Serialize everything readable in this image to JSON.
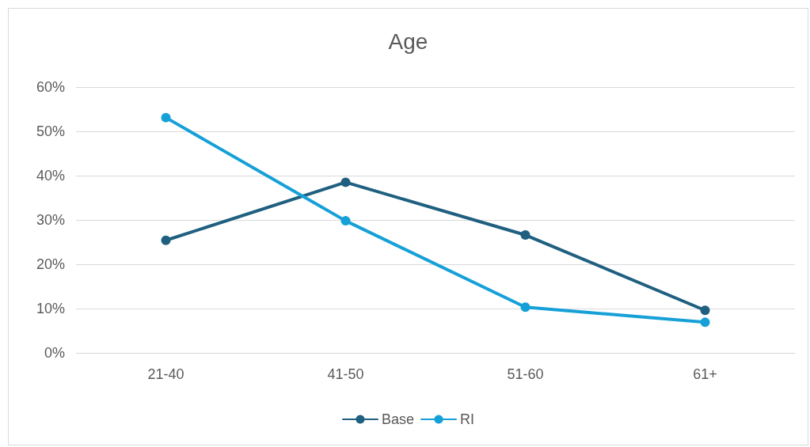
{
  "chart_data": {
    "type": "line",
    "title": "Age",
    "categories": [
      "21-40",
      "41-50",
      "51-60",
      "61+"
    ],
    "series": [
      {
        "name": "Base",
        "color": "#1f5f80",
        "values": [
          25.4,
          38.5,
          26.6,
          9.6
        ]
      },
      {
        "name": "RI",
        "color": "#16a0d8",
        "values": [
          53.1,
          29.8,
          10.3,
          6.9
        ]
      }
    ],
    "ylim": [
      0,
      60
    ],
    "yticks": [
      {
        "value": 0,
        "label": "0%"
      },
      {
        "value": 10,
        "label": "10%"
      },
      {
        "value": 20,
        "label": "20%"
      },
      {
        "value": 30,
        "label": "30%"
      },
      {
        "value": 40,
        "label": "40%"
      },
      {
        "value": 50,
        "label": "50%"
      },
      {
        "value": 60,
        "label": "60%"
      }
    ],
    "grid": "y",
    "legend": "bottom",
    "marker": "circle",
    "line_style": "solid"
  }
}
